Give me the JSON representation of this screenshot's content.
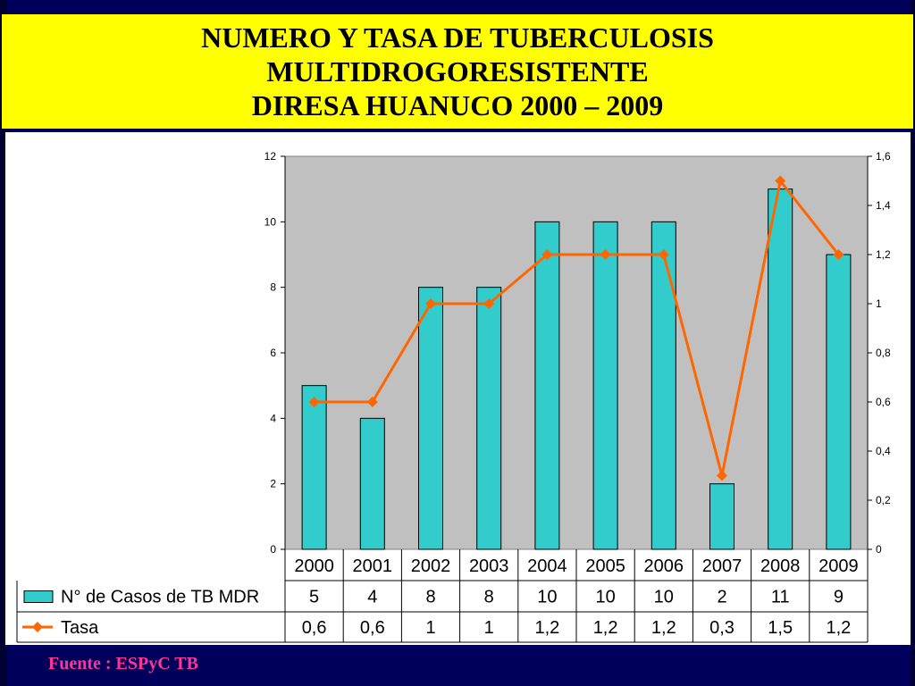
{
  "title": {
    "line1": "NUMERO Y TASA DE TUBERCULOSIS",
    "line2": "MULTIDROGORESISTENTE",
    "line3": "DIRESA HUANUCO 2000 – 2009"
  },
  "source": "Fuente : ESPyC TB",
  "colors": {
    "background": "#00005c",
    "banner": "#ffff00",
    "plot_area": "#c0c0c0",
    "bars": "#33cccc",
    "line": "#ff6600",
    "source_text": "#ff3399"
  },
  "chart_data": {
    "type": "bar",
    "categories": [
      "2000",
      "2001",
      "2002",
      "2003",
      "2004",
      "2005",
      "2006",
      "2007",
      "2008",
      "2009"
    ],
    "series": [
      {
        "name": "N° de Casos  de TB MDR",
        "type": "bar",
        "axis": "left",
        "values": [
          5,
          4,
          8,
          8,
          10,
          10,
          10,
          2,
          11,
          9
        ],
        "labels": [
          "5",
          "4",
          "8",
          "8",
          "10",
          "10",
          "10",
          "2",
          "11",
          "9"
        ]
      },
      {
        "name": "Tasa",
        "type": "line",
        "axis": "right",
        "values": [
          0.6,
          0.6,
          1,
          1,
          1.2,
          1.2,
          1.2,
          0.3,
          1.5,
          1.2
        ],
        "labels": [
          "0,6",
          "0,6",
          "1",
          "1",
          "1,2",
          "1,2",
          "1,2",
          "0,3",
          "1,5",
          "1,2"
        ]
      }
    ],
    "y_left": {
      "lim": [
        0,
        12
      ],
      "ticks": [
        "0",
        "2",
        "4",
        "6",
        "8",
        "10",
        "12"
      ]
    },
    "y_right": {
      "lim": [
        0,
        1.6
      ],
      "ticks": [
        "0",
        "0,2",
        "0,4",
        "0,6",
        "0,8",
        "1",
        "1,2",
        "1,4",
        "1,6"
      ]
    },
    "grid": false,
    "legend": "data-table-below"
  }
}
